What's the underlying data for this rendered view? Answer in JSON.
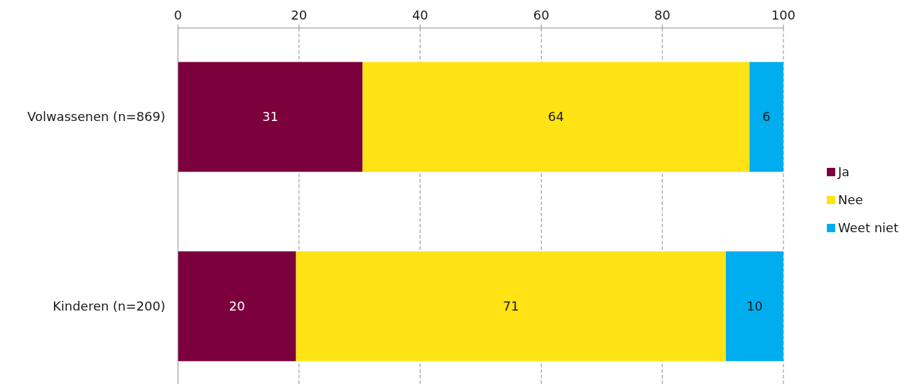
{
  "chart_data": {
    "type": "bar",
    "orientation": "horizontal",
    "stacked": true,
    "categories": [
      "Volwassenen (n=869)",
      "Kinderen (n=200)"
    ],
    "series": [
      {
        "name": "Ja",
        "color": "#7b003c",
        "values": [
          30.5,
          19.5
        ],
        "value_labels": [
          "31",
          "20"
        ]
      },
      {
        "name": "Nee",
        "color": "#ffe314",
        "values": [
          63.9,
          71
        ],
        "value_labels": [
          "64",
          "71"
        ]
      },
      {
        "name": "Weet niet",
        "color": "#00adee",
        "values": [
          5.6,
          9.5
        ],
        "value_labels": [
          "6",
          "10"
        ]
      }
    ],
    "xlim": [
      0,
      100
    ],
    "xticks": [
      0,
      20,
      40,
      60,
      80,
      100
    ],
    "grid": "x",
    "legend": "right"
  }
}
